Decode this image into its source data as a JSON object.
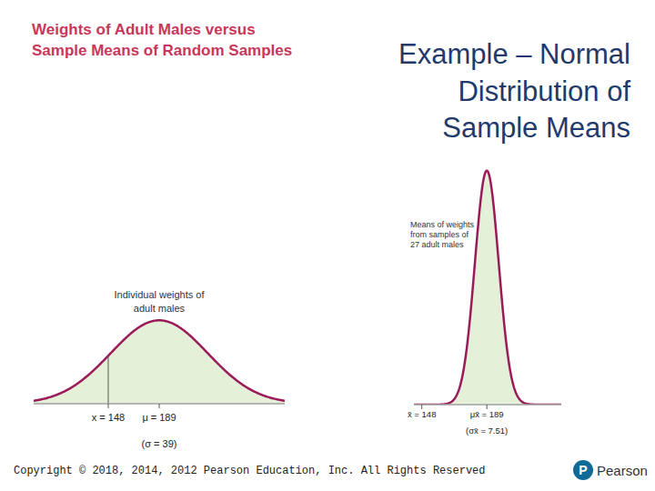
{
  "subtitle": [
    "Weights of Adult Males versus",
    "Sample Means of Random Samples"
  ],
  "title": [
    "Example – Normal",
    "Distribution of",
    "Sample Means"
  ],
  "footer": "Copyright © 2018, 2014, 2012 Pearson Education, Inc. All Rights Reserved",
  "logo": "Pearson",
  "chart_data": [
    {
      "type": "normal",
      "title": [
        "Individual weights of",
        "adult males"
      ],
      "mean": 189,
      "sd": 39,
      "sd_label": "(σ = 39)",
      "cutoff": 148,
      "xlim": [
        88,
        290
      ],
      "ylim": [
        0,
        0.0116
      ],
      "xticks": [
        {
          "value": 148,
          "label": "x = 148"
        },
        {
          "value": 189,
          "label": "μ = 189"
        }
      ],
      "color": "#9b1b5a"
    },
    {
      "type": "normal",
      "title": [
        "Means of weights",
        "from samples of",
        "27 adult males"
      ],
      "mean": 189,
      "sd": 7.51,
      "sd_label": "(σx̄ = 7.51)",
      "xlim": [
        143,
        236
      ],
      "ylim": [
        0,
        0.0547
      ],
      "xticks": [
        {
          "value": 148,
          "label": "x̄ = 148"
        },
        {
          "value": 189,
          "label": "μx̄ = 189"
        }
      ],
      "color": "#9b1b5a"
    }
  ]
}
